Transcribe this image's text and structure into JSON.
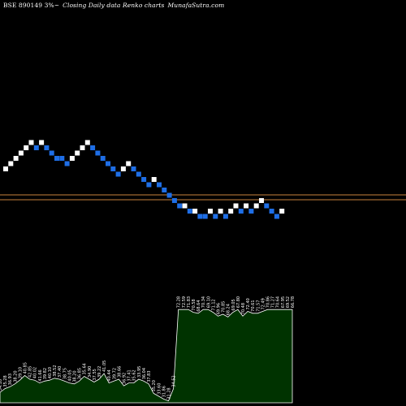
{
  "header": {
    "symbol_text": "BSE 890149 3%~",
    "chart_title": "Closing Daily data  Renko  charts",
    "site": "MunafaSutra.com"
  },
  "colors": {
    "background": "#000000",
    "up_brick": "#ffffff",
    "down_brick": "#1e6ee6",
    "reference_line": "#c8823c",
    "volume_fill": "#003300",
    "volume_stroke": "#ffffff",
    "label_text": "#ffffff"
  },
  "chart_data": {
    "type": "renko",
    "bricks": [
      {
        "dir": "up",
        "level": 0
      },
      {
        "dir": "up",
        "level": 1
      },
      {
        "dir": "up",
        "level": 2
      },
      {
        "dir": "up",
        "level": 3
      },
      {
        "dir": "up",
        "level": 4
      },
      {
        "dir": "up",
        "level": 5
      },
      {
        "dir": "down",
        "level": 4
      },
      {
        "dir": "up",
        "level": 5
      },
      {
        "dir": "down",
        "level": 4
      },
      {
        "dir": "down",
        "level": 3
      },
      {
        "dir": "down",
        "level": 2
      },
      {
        "dir": "down",
        "level": 2
      },
      {
        "dir": "down",
        "level": 1
      },
      {
        "dir": "up",
        "level": 2
      },
      {
        "dir": "up",
        "level": 3
      },
      {
        "dir": "up",
        "level": 4
      },
      {
        "dir": "up",
        "level": 5
      },
      {
        "dir": "down",
        "level": 4
      },
      {
        "dir": "down",
        "level": 3
      },
      {
        "dir": "down",
        "level": 2
      },
      {
        "dir": "down",
        "level": 1
      },
      {
        "dir": "down",
        "level": 0
      },
      {
        "dir": "down",
        "level": -1
      },
      {
        "dir": "up",
        "level": 0
      },
      {
        "dir": "up",
        "level": 1
      },
      {
        "dir": "down",
        "level": 0
      },
      {
        "dir": "down",
        "level": -1
      },
      {
        "dir": "down",
        "level": -2
      },
      {
        "dir": "down",
        "level": -3
      },
      {
        "dir": "up",
        "level": -2
      },
      {
        "dir": "down",
        "level": -3
      },
      {
        "dir": "down",
        "level": -4
      },
      {
        "dir": "down",
        "level": -5
      },
      {
        "dir": "down",
        "level": -6
      },
      {
        "dir": "down",
        "level": -7
      },
      {
        "dir": "up",
        "level": -7
      },
      {
        "dir": "down",
        "level": -8
      },
      {
        "dir": "up",
        "level": -8
      },
      {
        "dir": "down",
        "level": -9
      },
      {
        "dir": "down",
        "level": -9
      },
      {
        "dir": "up",
        "level": -8
      },
      {
        "dir": "down",
        "level": -9
      },
      {
        "dir": "up",
        "level": -8
      },
      {
        "dir": "down",
        "level": -9
      },
      {
        "dir": "up",
        "level": -8
      },
      {
        "dir": "up",
        "level": -7
      },
      {
        "dir": "down",
        "level": -8
      },
      {
        "dir": "up",
        "level": -7
      },
      {
        "dir": "down",
        "level": -8
      },
      {
        "dir": "up",
        "level": -7
      },
      {
        "dir": "up",
        "level": -6
      },
      {
        "dir": "down",
        "level": -7
      },
      {
        "dir": "down",
        "level": -8
      },
      {
        "dir": "down",
        "level": -9
      },
      {
        "dir": "up",
        "level": -8
      }
    ],
    "volume_labels": [
      "34.10",
      "35.28",
      "36.93",
      "38.20",
      "39.10",
      "40.85",
      "42.85",
      "40.02",
      "41.66",
      "39.82",
      "40.10",
      "38.52",
      "37.40",
      "38.75",
      "40.05",
      "38.20",
      "36.85",
      "35.64",
      "34.90",
      "37.55",
      "39.22",
      "41.05",
      "40.44",
      "39.72",
      "38.66",
      "36.92",
      "37.41",
      "35.62",
      "33.95",
      "36.04",
      "37.83",
      "35.20",
      "33.60",
      "31.86",
      "31.28",
      "34.52",
      "72.28",
      "72.59",
      "71.83",
      "70.58",
      "68.64",
      "70.34",
      "69.10",
      "71.12",
      "69.96",
      "70.85",
      "68.24",
      "69.05",
      "67.80",
      "70.48",
      "72.40",
      "70.61",
      "71.57",
      "72.49",
      "70.86",
      "71.27",
      "70.64",
      "67.95",
      "69.52",
      "66.78"
    ],
    "volume_heights": [
      0.11,
      0.15,
      0.17,
      0.2,
      0.24,
      0.29,
      0.25,
      0.24,
      0.21,
      0.23,
      0.24,
      0.26,
      0.25,
      0.23,
      0.21,
      0.2,
      0.23,
      0.28,
      0.25,
      0.22,
      0.25,
      0.31,
      0.21,
      0.23,
      0.25,
      0.18,
      0.21,
      0.21,
      0.25,
      0.23,
      0.2,
      0.1,
      0.07,
      0.04,
      0.02,
      0.15,
      0.99,
      0.99,
      0.99,
      0.96,
      0.95,
      0.99,
      0.99,
      0.96,
      0.92,
      0.94,
      0.91,
      0.96,
      0.99,
      0.92,
      0.97,
      0.95,
      0.95,
      0.97,
      0.99,
      0.99,
      0.99,
      0.99,
      0.99,
      0.99
    ],
    "reference_lines": 2
  }
}
